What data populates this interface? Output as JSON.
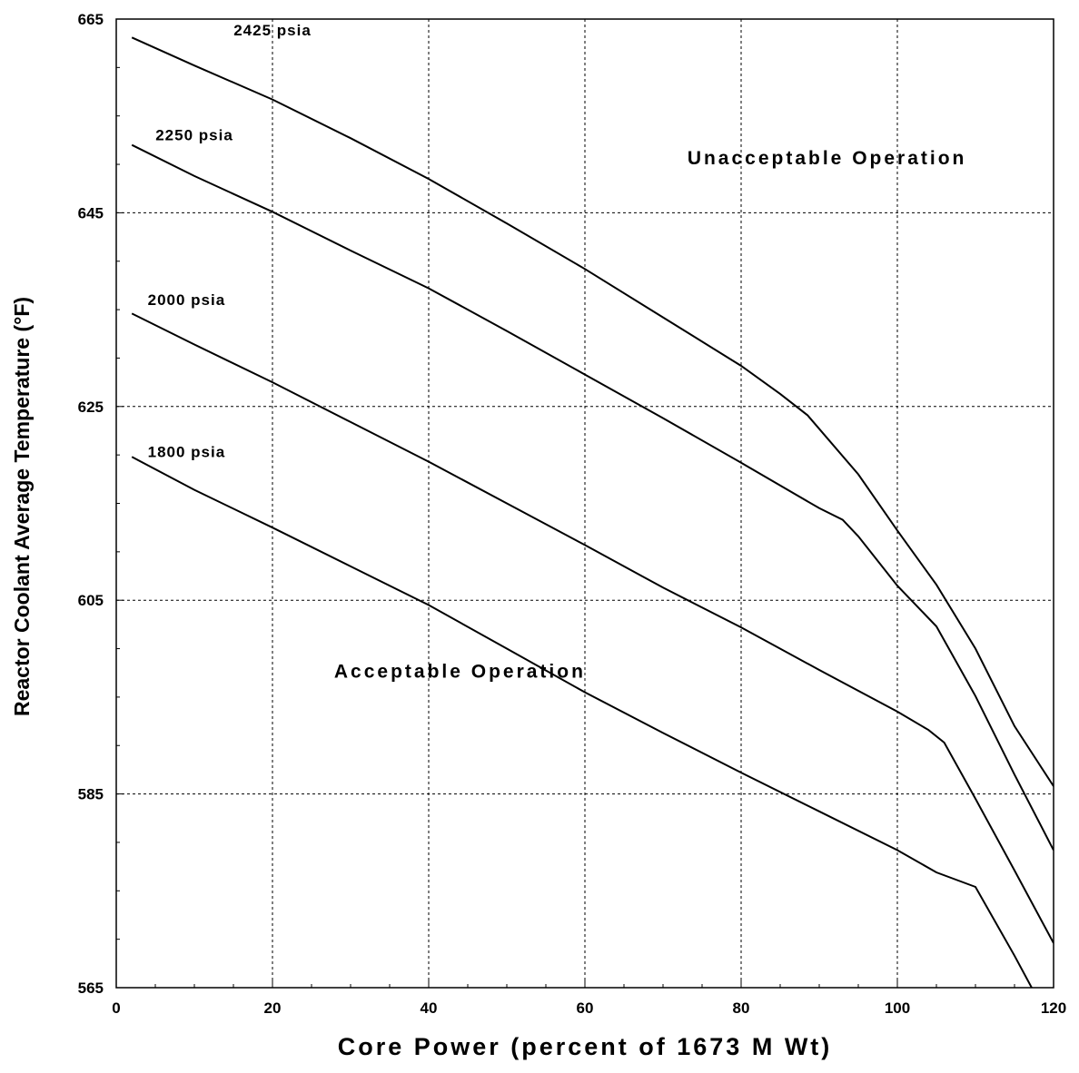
{
  "chart_data": {
    "type": "line",
    "xlabel": "Core Power (percent of 1673 M Wt)",
    "ylabel": "Reactor Coolant Average Temperature (°F)",
    "xlim": [
      0,
      120
    ],
    "ylim": [
      565,
      665
    ],
    "xticks": [
      "0",
      "20",
      "40",
      "60",
      "80",
      "100",
      "120"
    ],
    "yticks": [
      "565",
      "585",
      "605",
      "625",
      "645",
      "665"
    ],
    "grid": true,
    "annotations": [
      {
        "text": "Unacceptable Operation",
        "x": 91,
        "y": 650
      },
      {
        "text": "Acceptable Operation",
        "x": 44,
        "y": 597
      }
    ],
    "series": [
      {
        "name": "2425 psia",
        "x": [
          2,
          10,
          20,
          30,
          40,
          50,
          60,
          70,
          80,
          85,
          88.5,
          95,
          100,
          105,
          110,
          115,
          120
        ],
        "y": [
          663.1,
          660.2,
          656.7,
          652.7,
          648.5,
          643.9,
          639.2,
          634.2,
          629.2,
          626.3,
          624.1,
          618,
          612.2,
          606.6,
          600,
          592,
          585.8
        ]
      },
      {
        "name": "2250 psia",
        "x": [
          2,
          10,
          20,
          30,
          40,
          50,
          60,
          70,
          80,
          90,
          93,
          95,
          100,
          105,
          110,
          115,
          120
        ],
        "y": [
          652,
          648.8,
          645.1,
          641.1,
          637.2,
          632.8,
          628.3,
          623.8,
          619.2,
          614.5,
          613.3,
          611.6,
          606.5,
          602.3,
          595.1,
          587,
          579.2
        ]
      },
      {
        "name": "2000 psia",
        "x": [
          2,
          10,
          20,
          30,
          40,
          50,
          60,
          70,
          80,
          90,
          100,
          104,
          106,
          110,
          115,
          120
        ],
        "y": [
          634.6,
          631.4,
          627.5,
          623.4,
          619.3,
          615,
          610.7,
          606.3,
          602.2,
          597.8,
          593.5,
          591.6,
          590.3,
          584.5,
          577.1,
          569.6
        ]
      },
      {
        "name": "1800 psia",
        "x": [
          2,
          10,
          20,
          30,
          40,
          50,
          60,
          70,
          80,
          90,
          100,
          105,
          110,
          115,
          120
        ],
        "y": [
          619.8,
          616.4,
          612.5,
          608.5,
          604.5,
          600,
          595.5,
          591.3,
          587.2,
          583.2,
          579.2,
          576.9,
          575.4,
          568.3,
          560.8
        ]
      }
    ]
  }
}
